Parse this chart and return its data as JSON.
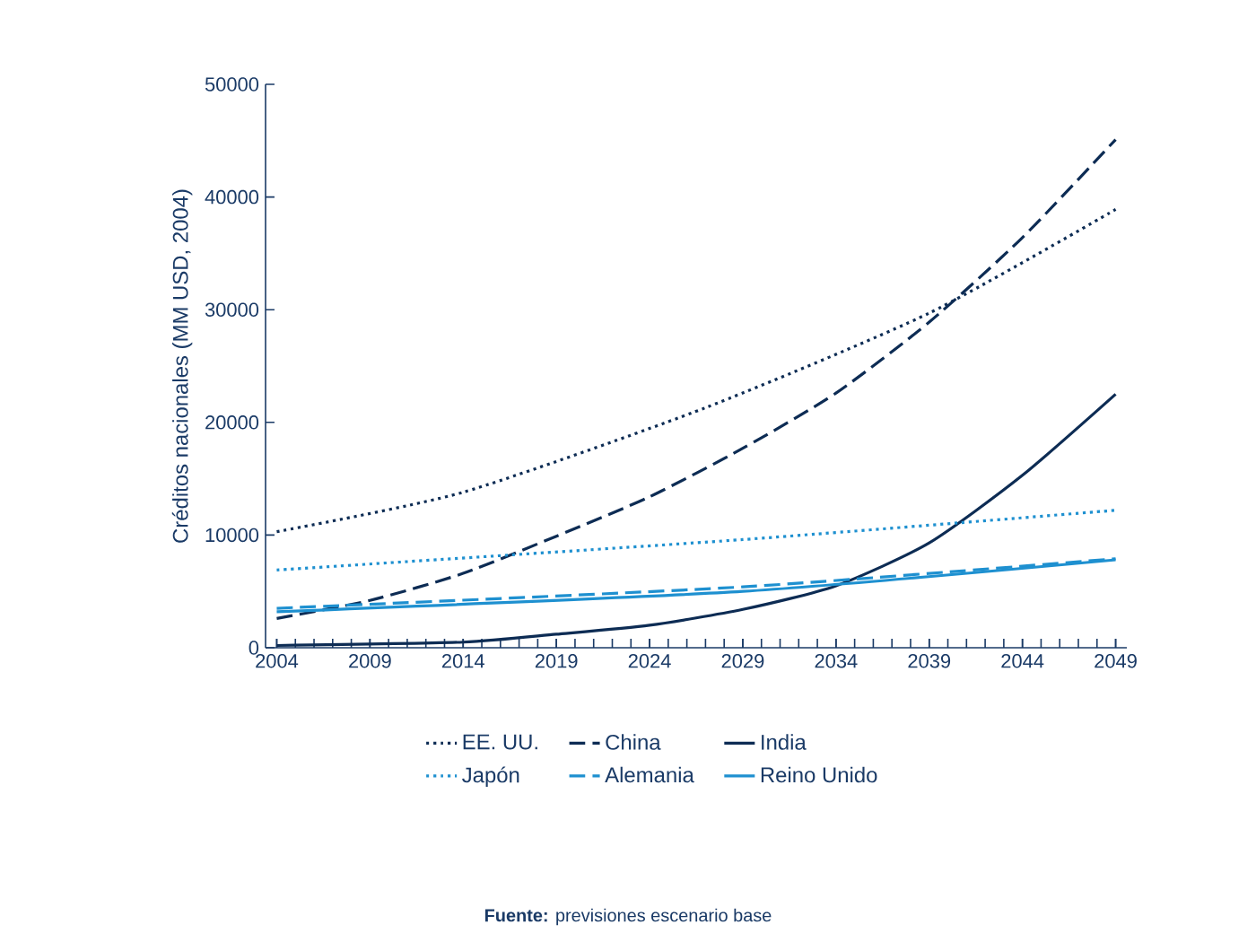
{
  "chart_data": {
    "type": "line",
    "ylabel": "Créditos nacionales (MM USD, 2004)",
    "xlim": [
      2003.4,
      2049.6
    ],
    "xticks": [
      2004,
      2009,
      2014,
      2019,
      2024,
      2029,
      2034,
      2039,
      2044,
      2049
    ],
    "ylim": [
      0,
      50000
    ],
    "yticks": [
      0,
      10000,
      20000,
      30000,
      40000,
      50000
    ],
    "legend": "bottom",
    "grid": false,
    "marker": "none",
    "annotations": [
      "**Fuente:** previsiones escenario base"
    ],
    "series": [
      {
        "name": "EE. UU.",
        "color": "#0d2c54",
        "line_style": "dotted",
        "x": [
          2004,
          2014,
          2027,
          2039,
          2049
        ],
        "values": [
          10300,
          13800,
          21300,
          29700,
          38900
        ]
      },
      {
        "name": "China",
        "color": "#0d2c54",
        "line_style": "dashed",
        "x": [
          2004,
          2009,
          2014,
          2019,
          2024,
          2029,
          2034,
          2039,
          2044,
          2049
        ],
        "values": [
          2600,
          4200,
          6600,
          9900,
          13400,
          17700,
          22600,
          28900,
          36400,
          45100
        ]
      },
      {
        "name": "India",
        "color": "#0d2c54",
        "line_style": "solid",
        "x": [
          2004,
          2014,
          2019,
          2024,
          2029,
          2034,
          2039,
          2044,
          2049
        ],
        "values": [
          200,
          500,
          1200,
          2000,
          3400,
          5500,
          9300,
          15300,
          22500
        ]
      },
      {
        "name": "Japón",
        "color": "#1e90d0",
        "line_style": "dotted",
        "x": [
          2004,
          2029,
          2049
        ],
        "values": [
          6900,
          9600,
          12200
        ]
      },
      {
        "name": "Alemania",
        "color": "#1e90d0",
        "line_style": "dashed",
        "x": [
          2004,
          2029,
          2049
        ],
        "values": [
          3500,
          5400,
          7900
        ]
      },
      {
        "name": "Reino Unido",
        "color": "#1e90d0",
        "line_style": "solid",
        "x": [
          2004,
          2029,
          2049
        ],
        "values": [
          3200,
          5000,
          7800
        ]
      }
    ]
  }
}
